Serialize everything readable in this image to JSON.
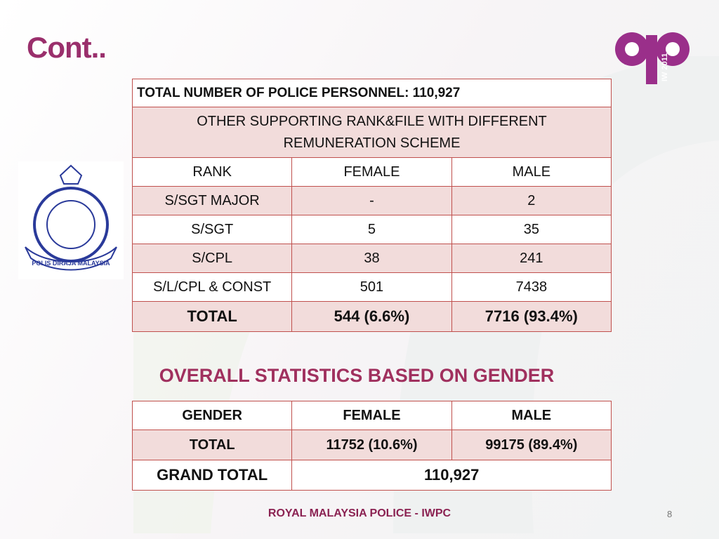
{
  "title": "Cont..",
  "logo_text": "IW 2011",
  "emblem_text": "POLIS DIRAJA MALAYSIA",
  "table1": {
    "header": "TOTAL NUMBER OF POLICE PERSONNEL: 110,927",
    "subheader": "OTHER SUPPORTING RANK&FILE WITH DIFFERENT REMUNERATION SCHEME",
    "columns": [
      "RANK",
      "FEMALE",
      "MALE"
    ],
    "rows": [
      [
        "S/SGT MAJOR",
        "-",
        "2"
      ],
      [
        "S/SGT",
        "5",
        "35"
      ],
      [
        "S/CPL",
        "38",
        "241"
      ],
      [
        "S/L/CPL & CONST",
        "501",
        "7438"
      ],
      [
        "TOTAL",
        "544 (6.6%)",
        "7716 (93.4%)"
      ]
    ]
  },
  "section_title": "OVERALL STATISTICS BASED ON GENDER",
  "table2": {
    "columns": [
      "GENDER",
      "FEMALE",
      "MALE"
    ],
    "rows": [
      [
        "TOTAL",
        "11752 (10.6%)",
        "99175 (89.4%)"
      ]
    ],
    "grand_total": {
      "label": "GRAND TOTAL",
      "value": "110,927"
    }
  },
  "footer": "ROYAL MALAYSIA POLICE - IWPC",
  "page_number": "8"
}
